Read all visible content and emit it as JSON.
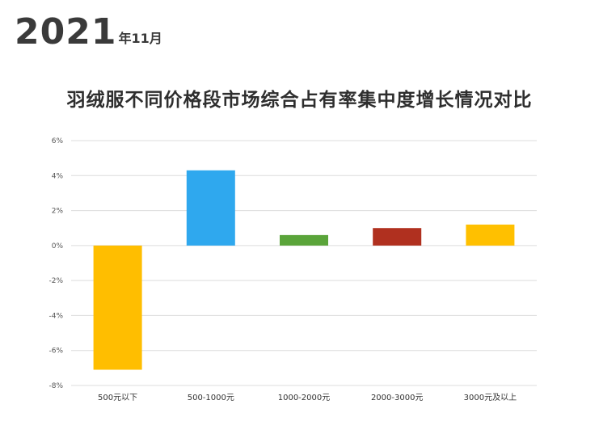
{
  "header": {
    "year": "2021",
    "month": "年11月"
  },
  "chart_data": {
    "type": "bar",
    "title": "羽绒服不同价格段市场综合占有率集中度增长情况对比",
    "xlabel": "",
    "ylabel": "",
    "ylim": [
      -8,
      6
    ],
    "yticks": [
      6,
      4,
      2,
      0,
      -2,
      -4,
      -6,
      -8
    ],
    "ytick_labels": [
      "6%",
      "4%",
      "2%",
      "0%",
      "-2%",
      "-4%",
      "-6%",
      "-8%"
    ],
    "categories": [
      "500元以下",
      "500-1000元",
      "1000-2000元",
      "2000-3000元",
      "3000元及以上"
    ],
    "values": [
      -7.1,
      4.3,
      0.6,
      1.0,
      1.2
    ],
    "unit": "%",
    "grid": true,
    "legend": "none",
    "colors": [
      "#FFBE00",
      "#2FA8EE",
      "#5AA43A",
      "#B0301F",
      "#FFC000"
    ],
    "gridline_color": "#dcdcdc"
  }
}
